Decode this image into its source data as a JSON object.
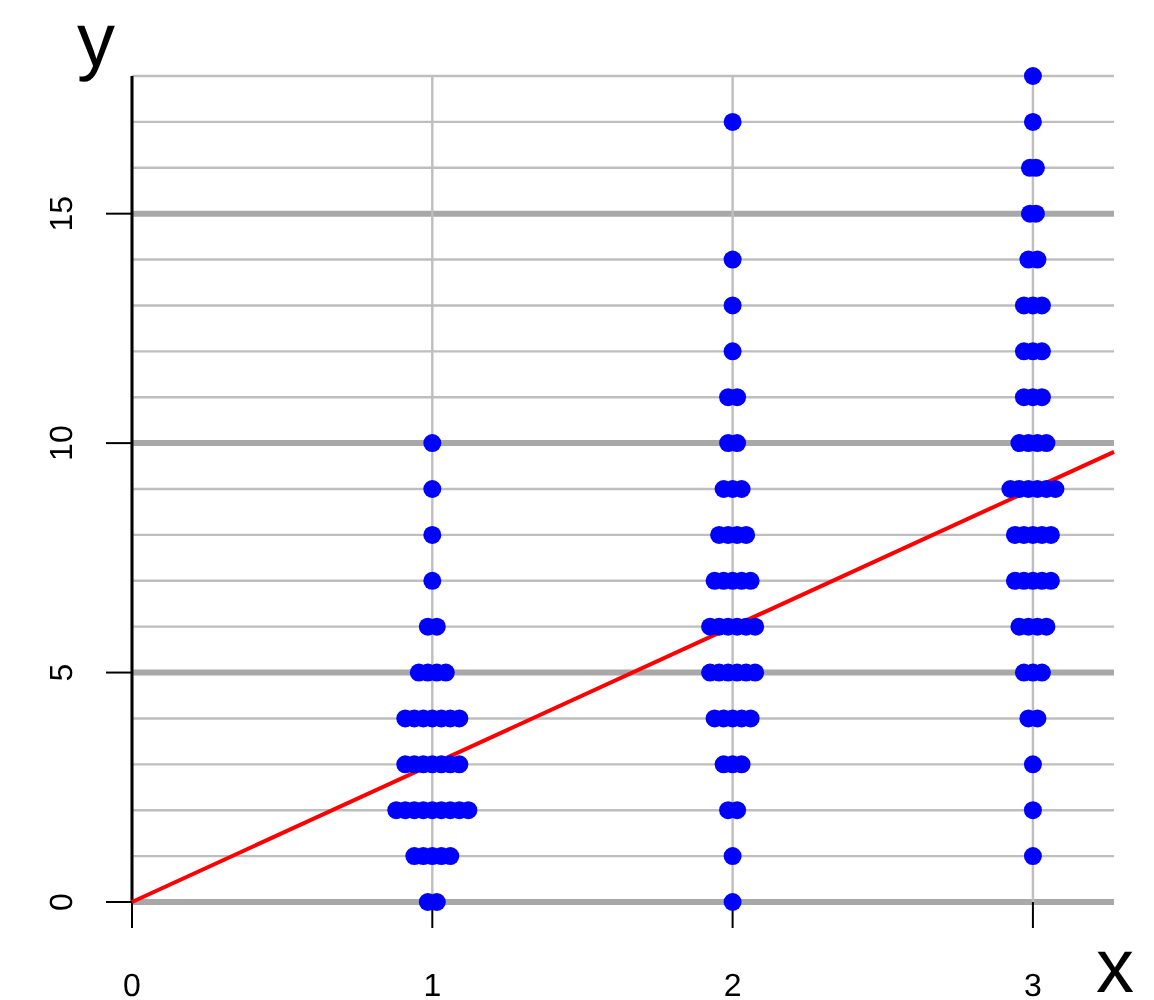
{
  "chart_data": {
    "type": "scatter",
    "xlabel": "x",
    "ylabel": "y",
    "xlim": [
      0,
      3.27
    ],
    "ylim": [
      0,
      18
    ],
    "xticks": [
      0,
      1,
      2,
      3
    ],
    "yticks": [
      0,
      {
        "value": 1,
        "label": null
      },
      {
        "value": 2,
        "label": null
      },
      {
        "value": 3,
        "label": null
      },
      {
        "value": 4,
        "label": null
      },
      5,
      {
        "value": 6,
        "label": null
      },
      {
        "value": 7,
        "label": null
      },
      {
        "value": 8,
        "label": null
      },
      {
        "value": 9,
        "label": null
      },
      10,
      {
        "value": 11,
        "label": null
      },
      {
        "value": 12,
        "label": null
      },
      {
        "value": 13,
        "label": null
      },
      {
        "value": 14,
        "label": null
      },
      15,
      {
        "value": 16,
        "label": null
      },
      {
        "value": 17,
        "label": null
      },
      {
        "value": 18,
        "label": null
      }
    ],
    "grid": true,
    "series": [
      {
        "marker": "circle",
        "color": "#0000ff",
        "x": [
          0.985,
          1.015,
          0.94,
          0.97,
          1,
          1.03,
          1.06,
          0.88,
          0.91,
          0.94,
          0.97,
          1,
          1.03,
          1.06,
          1.09,
          1.12,
          0.91,
          0.94,
          0.97,
          1,
          1.03,
          1.06,
          1.09,
          0.91,
          0.94,
          0.97,
          1,
          1.03,
          1.06,
          1.09,
          0.955,
          0.985,
          1.015,
          1.045,
          0.985,
          1.015,
          1,
          1,
          1,
          1
        ],
        "values": [
          0,
          0,
          1,
          1,
          1,
          1,
          1,
          2,
          2,
          2,
          2,
          2,
          2,
          2,
          2,
          2,
          3,
          3,
          3,
          3,
          3,
          3,
          3,
          4,
          4,
          4,
          4,
          4,
          4,
          4,
          5,
          5,
          5,
          5,
          6,
          6,
          7,
          8,
          9,
          10
        ]
      },
      {
        "marker": "circle",
        "color": "#0000ff",
        "x": [
          2,
          2,
          1.985,
          2.015,
          1.97,
          2,
          2.03,
          1.94,
          1.97,
          2,
          2.03,
          2.06,
          1.925,
          1.955,
          1.985,
          2.015,
          2.045,
          2.075,
          1.925,
          1.955,
          1.985,
          2.015,
          2.045,
          2.075,
          1.94,
          1.97,
          2,
          2.03,
          2.06,
          1.955,
          1.985,
          2.015,
          2.045,
          1.97,
          2,
          2.03,
          1.985,
          2.015,
          1.985,
          2.015,
          2,
          2,
          2,
          2
        ],
        "values": [
          0,
          1,
          2,
          2,
          3,
          3,
          3,
          4,
          4,
          4,
          4,
          4,
          5,
          5,
          5,
          5,
          5,
          5,
          6,
          6,
          6,
          6,
          6,
          6,
          7,
          7,
          7,
          7,
          7,
          8,
          8,
          8,
          8,
          9,
          9,
          9,
          10,
          10,
          11,
          11,
          12,
          13,
          14,
          17
        ]
      },
      {
        "marker": "circle",
        "color": "#0000ff",
        "x": [
          3,
          3,
          3,
          2.985,
          3.015,
          2.97,
          3,
          3.03,
          2.955,
          2.985,
          3.015,
          3.045,
          2.94,
          2.97,
          3,
          3.03,
          3.06,
          2.94,
          2.97,
          3,
          3.03,
          3.06,
          2.925,
          2.955,
          2.985,
          3.015,
          3.045,
          3.075,
          2.955,
          2.985,
          3.015,
          3.045,
          2.97,
          3,
          3.03,
          2.97,
          3,
          3.03,
          2.97,
          3,
          3.03,
          2.985,
          3.015,
          2.99,
          3.01,
          2.99,
          3.01,
          3,
          3
        ],
        "values": [
          1,
          2,
          3,
          4,
          4,
          5,
          5,
          5,
          6,
          6,
          6,
          6,
          7,
          7,
          7,
          7,
          7,
          8,
          8,
          8,
          8,
          8,
          9,
          9,
          9,
          9,
          9,
          9,
          10,
          10,
          10,
          10,
          11,
          11,
          11,
          12,
          12,
          12,
          13,
          13,
          13,
          14,
          14,
          15,
          15,
          16,
          16,
          17,
          18
        ]
      },
      {
        "type": "line",
        "color": "#ff0000",
        "x": [
          0,
          3.27
        ],
        "values": [
          0,
          9.81
        ]
      }
    ]
  }
}
